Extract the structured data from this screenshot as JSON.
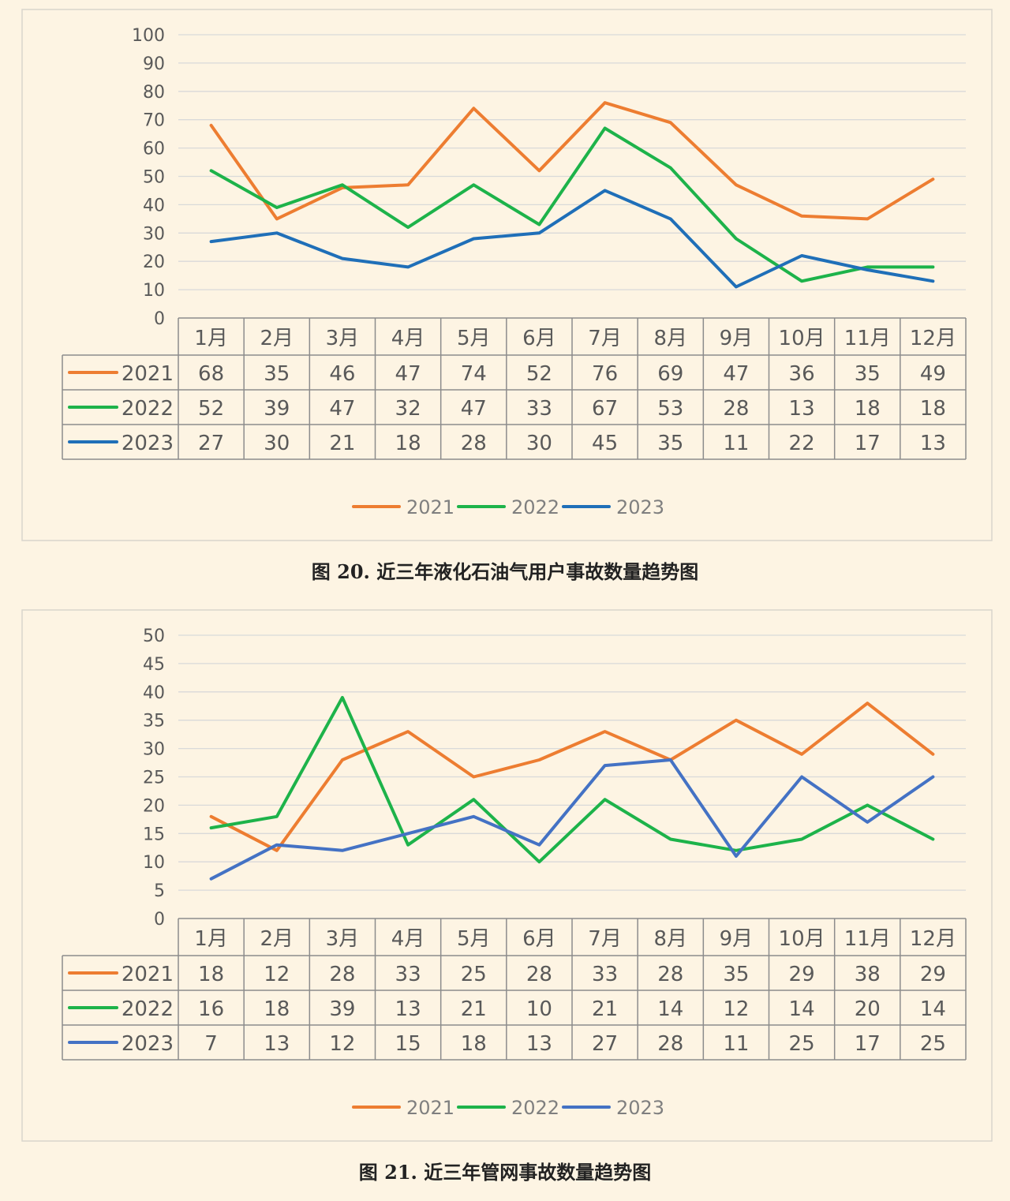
{
  "colors": {
    "page_bg": "#fdf4e3",
    "frame": "#d9d5cc",
    "grid": "#d9d9d9",
    "text": "#595959",
    "table_border": "#8c8c8c",
    "caption": "#222222"
  },
  "captions": {
    "fig20": "图 20.  近三年液化石油气用户事故数量趋势图",
    "fig21": "图 21.  近三年管网事故数量趋势图"
  },
  "chart_data": [
    {
      "type": "line",
      "title": "",
      "xlabel": "",
      "ylabel": "",
      "ylim": [
        0,
        100
      ],
      "yticks": [
        "0",
        "10",
        "20",
        "30",
        "40",
        "50",
        "60",
        "70",
        "80",
        "90",
        "100"
      ],
      "grid": true,
      "legend_position": "bottom",
      "data_table": true,
      "categories": [
        "1月",
        "2月",
        "3月",
        "4月",
        "5月",
        "6月",
        "7月",
        "8月",
        "9月",
        "10月",
        "11月",
        "12月"
      ],
      "series": [
        {
          "name": "2021",
          "color": "#ed7d31",
          "values": [
            68,
            35,
            46,
            47,
            74,
            52,
            76,
            69,
            47,
            36,
            35,
            49
          ]
        },
        {
          "name": "2022",
          "color": "#1db34a",
          "values": [
            52,
            39,
            47,
            32,
            47,
            33,
            67,
            53,
            28,
            13,
            18,
            18
          ]
        },
        {
          "name": "2023",
          "color": "#1f6fb8",
          "values": [
            27,
            30,
            21,
            18,
            28,
            30,
            45,
            35,
            11,
            22,
            17,
            13
          ]
        }
      ]
    },
    {
      "type": "line",
      "title": "",
      "xlabel": "",
      "ylabel": "",
      "ylim": [
        0,
        50
      ],
      "yticks": [
        "0",
        "5",
        "10",
        "15",
        "20",
        "25",
        "30",
        "35",
        "40",
        "45",
        "50"
      ],
      "grid": true,
      "legend_position": "bottom",
      "data_table": true,
      "categories": [
        "1月",
        "2月",
        "3月",
        "4月",
        "5月",
        "6月",
        "7月",
        "8月",
        "9月",
        "10月",
        "11月",
        "12月"
      ],
      "series": [
        {
          "name": "2021",
          "color": "#ed7d31",
          "values": [
            18,
            12,
            28,
            33,
            25,
            28,
            33,
            28,
            35,
            29,
            38,
            29
          ]
        },
        {
          "name": "2022",
          "color": "#1db34a",
          "values": [
            16,
            18,
            39,
            13,
            21,
            10,
            21,
            14,
            12,
            14,
            20,
            14
          ]
        },
        {
          "name": "2023",
          "color": "#4472c4",
          "values": [
            7,
            13,
            12,
            15,
            18,
            13,
            27,
            28,
            11,
            25,
            17,
            25
          ]
        }
      ]
    }
  ]
}
